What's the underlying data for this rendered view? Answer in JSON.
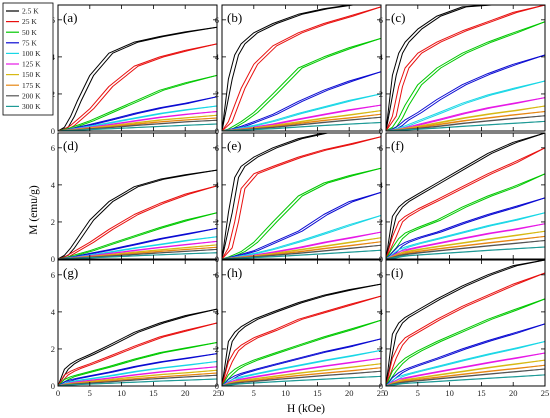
{
  "chart_data": {
    "type": "line",
    "xlabel": "H (kOe)",
    "ylabel": "M (emu/g)",
    "xlim": [
      0,
      25
    ],
    "ylim": [
      0,
      6.8
    ],
    "xticks": [
      0,
      5,
      10,
      15,
      20,
      25
    ],
    "yticks": [
      0,
      2,
      4,
      6
    ],
    "grid": false,
    "legend_placement": "top-left, outside panel (a)",
    "series_styles": [
      {
        "name": "2.5 K",
        "color": "#000000"
      },
      {
        "name": "25 K",
        "color": "#e8100f"
      },
      {
        "name": "50 K",
        "color": "#00c800"
      },
      {
        "name": "75 K",
        "color": "#0a0ad2"
      },
      {
        "name": "100 K",
        "color": "#19d7e6"
      },
      {
        "name": "125 K",
        "color": "#e619e6"
      },
      {
        "name": "150 K",
        "color": "#d7b914"
      },
      {
        "name": "175 K",
        "color": "#e68714"
      },
      {
        "name": "200 K",
        "color": "#555555"
      },
      {
        "name": "300 K",
        "color": "#1e9a96"
      }
    ],
    "x": [
      0,
      1,
      2,
      3,
      5,
      8,
      12,
      16,
      20,
      25
    ],
    "panels": [
      {
        "label": "(a)",
        "series": [
          [
            0,
            0.2,
            0.8,
            1.6,
            3.0,
            4.2,
            4.8,
            5.1,
            5.35,
            5.6
          ],
          [
            0,
            0.1,
            0.3,
            0.6,
            1.2,
            2.4,
            3.5,
            4.0,
            4.35,
            4.7
          ],
          [
            0,
            0.08,
            0.18,
            0.3,
            0.55,
            1.0,
            1.6,
            2.2,
            2.6,
            3.0
          ],
          [
            0,
            0.05,
            0.12,
            0.2,
            0.35,
            0.6,
            0.95,
            1.25,
            1.5,
            1.85
          ],
          [
            0,
            0.04,
            0.1,
            0.15,
            0.27,
            0.45,
            0.7,
            0.95,
            1.15,
            1.35
          ],
          [
            0,
            0.04,
            0.08,
            0.12,
            0.21,
            0.35,
            0.55,
            0.75,
            0.9,
            1.05
          ],
          [
            0,
            0.03,
            0.07,
            0.1,
            0.17,
            0.28,
            0.45,
            0.6,
            0.72,
            0.85
          ],
          [
            0,
            0.03,
            0.06,
            0.09,
            0.14,
            0.23,
            0.37,
            0.5,
            0.6,
            0.7
          ],
          [
            0,
            0.02,
            0.05,
            0.07,
            0.12,
            0.19,
            0.3,
            0.4,
            0.5,
            0.58
          ],
          [
            0,
            0.02,
            0.03,
            0.05,
            0.08,
            0.12,
            0.19,
            0.25,
            0.31,
            0.38
          ]
        ]
      },
      {
        "label": "(b)",
        "series": [
          [
            0,
            2.8,
            4.1,
            4.7,
            5.3,
            5.8,
            6.3,
            6.6,
            6.8,
            6.8
          ],
          [
            0,
            0.5,
            1.4,
            2.3,
            3.6,
            4.6,
            5.3,
            5.8,
            6.2,
            6.7
          ],
          [
            0,
            0.1,
            0.3,
            0.5,
            1.0,
            2.0,
            3.4,
            4.0,
            4.5,
            5.0
          ],
          [
            0,
            0.07,
            0.15,
            0.25,
            0.5,
            0.9,
            1.6,
            2.2,
            2.7,
            3.2
          ],
          [
            0,
            0.05,
            0.11,
            0.17,
            0.3,
            0.55,
            0.95,
            1.3,
            1.65,
            2.0
          ],
          [
            0,
            0.04,
            0.08,
            0.12,
            0.21,
            0.38,
            0.65,
            0.9,
            1.15,
            1.4
          ],
          [
            0,
            0.03,
            0.07,
            0.1,
            0.17,
            0.3,
            0.5,
            0.7,
            0.88,
            1.1
          ],
          [
            0,
            0.03,
            0.06,
            0.09,
            0.14,
            0.25,
            0.42,
            0.58,
            0.72,
            0.9
          ],
          [
            0,
            0.02,
            0.05,
            0.07,
            0.12,
            0.2,
            0.34,
            0.47,
            0.6,
            0.74
          ],
          [
            0,
            0.02,
            0.03,
            0.05,
            0.08,
            0.13,
            0.22,
            0.3,
            0.38,
            0.46
          ]
        ]
      },
      {
        "label": "(c)",
        "series": [
          [
            0,
            3.0,
            4.2,
            4.8,
            5.5,
            6.2,
            6.7,
            6.8,
            6.8,
            6.8
          ],
          [
            0,
            0.8,
            2.4,
            3.4,
            4.2,
            4.8,
            5.4,
            5.9,
            6.4,
            6.8
          ],
          [
            0,
            0.2,
            0.7,
            1.4,
            2.5,
            3.4,
            4.2,
            4.8,
            5.3,
            5.9
          ],
          [
            0,
            0.1,
            0.3,
            0.6,
            1.0,
            1.7,
            2.5,
            3.1,
            3.6,
            4.1
          ],
          [
            0,
            0.07,
            0.16,
            0.28,
            0.55,
            0.95,
            1.5,
            1.95,
            2.3,
            2.7
          ],
          [
            0,
            0.05,
            0.11,
            0.18,
            0.35,
            0.6,
            0.95,
            1.25,
            1.5,
            1.8
          ],
          [
            0,
            0.04,
            0.09,
            0.14,
            0.26,
            0.45,
            0.7,
            0.92,
            1.1,
            1.35
          ],
          [
            0,
            0.03,
            0.07,
            0.11,
            0.2,
            0.35,
            0.55,
            0.72,
            0.88,
            1.05
          ],
          [
            0,
            0.03,
            0.06,
            0.09,
            0.15,
            0.26,
            0.42,
            0.55,
            0.68,
            0.82
          ],
          [
            0,
            0.02,
            0.04,
            0.06,
            0.1,
            0.16,
            0.26,
            0.34,
            0.42,
            0.52
          ]
        ]
      },
      {
        "label": "(d)",
        "series": [
          [
            0,
            0.2,
            0.6,
            1.1,
            2.1,
            3.1,
            3.9,
            4.3,
            4.55,
            4.8
          ],
          [
            0,
            0.1,
            0.3,
            0.5,
            0.9,
            1.6,
            2.4,
            3.0,
            3.5,
            3.95
          ],
          [
            0,
            0.06,
            0.15,
            0.26,
            0.45,
            0.8,
            1.25,
            1.7,
            2.1,
            2.5
          ],
          [
            0,
            0.04,
            0.1,
            0.16,
            0.3,
            0.5,
            0.8,
            1.1,
            1.35,
            1.65
          ],
          [
            0,
            0.03,
            0.08,
            0.12,
            0.22,
            0.38,
            0.6,
            0.8,
            1.0,
            1.2
          ],
          [
            0,
            0.03,
            0.06,
            0.1,
            0.17,
            0.3,
            0.47,
            0.63,
            0.78,
            0.95
          ],
          [
            0,
            0.02,
            0.05,
            0.08,
            0.14,
            0.24,
            0.38,
            0.5,
            0.62,
            0.76
          ],
          [
            0,
            0.02,
            0.04,
            0.07,
            0.12,
            0.2,
            0.31,
            0.42,
            0.52,
            0.63
          ],
          [
            0,
            0.02,
            0.04,
            0.06,
            0.1,
            0.16,
            0.25,
            0.34,
            0.42,
            0.52
          ],
          [
            0,
            0.01,
            0.03,
            0.04,
            0.07,
            0.11,
            0.17,
            0.23,
            0.28,
            0.34
          ]
        ]
      },
      {
        "label": "(e)",
        "series": [
          [
            0,
            2.5,
            4.4,
            5.0,
            5.5,
            6.0,
            6.5,
            6.8,
            6.8,
            6.8
          ],
          [
            0,
            0.6,
            2.0,
            3.8,
            4.6,
            5.0,
            5.5,
            5.9,
            6.2,
            6.6
          ],
          [
            0,
            0.1,
            0.25,
            0.4,
            0.9,
            2.0,
            3.4,
            4.1,
            4.5,
            4.9
          ],
          [
            0,
            0.07,
            0.16,
            0.25,
            0.45,
            0.9,
            1.5,
            2.4,
            3.1,
            3.6
          ],
          [
            0,
            0.05,
            0.11,
            0.17,
            0.3,
            0.55,
            0.95,
            1.4,
            1.85,
            2.35
          ],
          [
            0,
            0.04,
            0.08,
            0.12,
            0.21,
            0.38,
            0.62,
            0.9,
            1.15,
            1.45
          ],
          [
            0,
            0.03,
            0.07,
            0.1,
            0.17,
            0.3,
            0.5,
            0.7,
            0.9,
            1.15
          ],
          [
            0,
            0.03,
            0.06,
            0.09,
            0.14,
            0.25,
            0.4,
            0.57,
            0.73,
            0.93
          ],
          [
            0,
            0.02,
            0.05,
            0.07,
            0.12,
            0.2,
            0.32,
            0.45,
            0.58,
            0.74
          ],
          [
            0,
            0.02,
            0.03,
            0.05,
            0.08,
            0.13,
            0.21,
            0.29,
            0.37,
            0.47
          ]
        ]
      },
      {
        "label": "(f)",
        "series": [
          [
            0,
            2.3,
            2.8,
            3.1,
            3.5,
            4.1,
            4.9,
            5.7,
            6.3,
            6.8
          ],
          [
            0,
            1.2,
            2.0,
            2.3,
            2.7,
            3.2,
            3.9,
            4.6,
            5.2,
            6.0
          ],
          [
            0,
            0.6,
            1.1,
            1.4,
            1.7,
            2.1,
            2.8,
            3.4,
            3.9,
            4.6
          ],
          [
            0,
            0.35,
            0.7,
            0.9,
            1.15,
            1.45,
            1.95,
            2.4,
            2.8,
            3.3
          ],
          [
            0,
            0.25,
            0.5,
            0.65,
            0.85,
            1.1,
            1.45,
            1.8,
            2.1,
            2.5
          ],
          [
            0,
            0.18,
            0.38,
            0.5,
            0.65,
            0.85,
            1.12,
            1.38,
            1.6,
            1.9
          ],
          [
            0,
            0.14,
            0.3,
            0.4,
            0.52,
            0.68,
            0.88,
            1.08,
            1.27,
            1.5
          ],
          [
            0,
            0.11,
            0.24,
            0.32,
            0.42,
            0.55,
            0.72,
            0.88,
            1.03,
            1.22
          ],
          [
            0,
            0.09,
            0.19,
            0.26,
            0.34,
            0.45,
            0.58,
            0.72,
            0.84,
            1.0
          ],
          [
            0,
            0.06,
            0.13,
            0.17,
            0.22,
            0.29,
            0.38,
            0.47,
            0.55,
            0.65
          ]
        ]
      },
      {
        "label": "(g)",
        "series": [
          [
            0,
            0.9,
            1.2,
            1.4,
            1.7,
            2.2,
            2.9,
            3.4,
            3.8,
            4.15
          ],
          [
            0,
            0.6,
            0.8,
            0.95,
            1.2,
            1.6,
            2.15,
            2.65,
            3.0,
            3.4
          ],
          [
            0,
            0.35,
            0.5,
            0.6,
            0.78,
            1.05,
            1.45,
            1.8,
            2.05,
            2.35
          ],
          [
            0,
            0.22,
            0.34,
            0.42,
            0.55,
            0.75,
            1.05,
            1.3,
            1.5,
            1.75
          ],
          [
            0,
            0.15,
            0.24,
            0.3,
            0.4,
            0.55,
            0.78,
            0.97,
            1.13,
            1.32
          ],
          [
            0,
            0.11,
            0.18,
            0.23,
            0.31,
            0.43,
            0.61,
            0.76,
            0.89,
            1.04
          ],
          [
            0,
            0.09,
            0.14,
            0.18,
            0.25,
            0.35,
            0.49,
            0.62,
            0.72,
            0.85
          ],
          [
            0,
            0.07,
            0.11,
            0.15,
            0.2,
            0.28,
            0.4,
            0.5,
            0.59,
            0.7
          ],
          [
            0,
            0.06,
            0.09,
            0.12,
            0.16,
            0.23,
            0.33,
            0.41,
            0.49,
            0.58
          ],
          [
            0,
            0.04,
            0.06,
            0.08,
            0.11,
            0.15,
            0.21,
            0.27,
            0.32,
            0.38
          ]
        ]
      },
      {
        "label": "(h)",
        "series": [
          [
            0,
            2.4,
            2.9,
            3.2,
            3.6,
            4.0,
            4.5,
            4.9,
            5.2,
            5.5
          ],
          [
            0,
            1.3,
            1.9,
            2.2,
            2.6,
            3.0,
            3.6,
            4.0,
            4.4,
            4.85
          ],
          [
            0,
            0.6,
            0.9,
            1.1,
            1.4,
            1.75,
            2.2,
            2.65,
            3.05,
            3.55
          ],
          [
            0,
            0.35,
            0.55,
            0.68,
            0.88,
            1.15,
            1.5,
            1.85,
            2.15,
            2.55
          ],
          [
            0,
            0.25,
            0.4,
            0.5,
            0.65,
            0.86,
            1.12,
            1.38,
            1.62,
            1.92
          ],
          [
            0,
            0.19,
            0.3,
            0.38,
            0.5,
            0.67,
            0.88,
            1.08,
            1.27,
            1.5
          ],
          [
            0,
            0.15,
            0.24,
            0.3,
            0.4,
            0.53,
            0.7,
            0.86,
            1.01,
            1.2
          ],
          [
            0,
            0.12,
            0.19,
            0.24,
            0.32,
            0.43,
            0.57,
            0.7,
            0.82,
            0.98
          ],
          [
            0,
            0.1,
            0.16,
            0.2,
            0.26,
            0.35,
            0.46,
            0.57,
            0.67,
            0.8
          ],
          [
            0,
            0.06,
            0.1,
            0.13,
            0.17,
            0.23,
            0.3,
            0.37,
            0.44,
            0.52
          ]
        ]
      },
      {
        "label": "(i)",
        "series": [
          [
            0,
            2.8,
            3.4,
            3.7,
            4.1,
            4.7,
            5.4,
            6.0,
            6.5,
            6.8
          ],
          [
            0,
            1.5,
            2.2,
            2.6,
            3.0,
            3.6,
            4.3,
            4.9,
            5.5,
            6.1
          ],
          [
            0,
            0.8,
            1.2,
            1.5,
            1.9,
            2.4,
            3.0,
            3.6,
            4.1,
            4.7
          ],
          [
            0,
            0.45,
            0.72,
            0.9,
            1.15,
            1.5,
            2.0,
            2.45,
            2.85,
            3.35
          ],
          [
            0,
            0.3,
            0.5,
            0.62,
            0.8,
            1.05,
            1.4,
            1.72,
            2.02,
            2.4
          ],
          [
            0,
            0.22,
            0.36,
            0.45,
            0.58,
            0.77,
            1.02,
            1.27,
            1.5,
            1.78
          ],
          [
            0,
            0.17,
            0.28,
            0.35,
            0.45,
            0.6,
            0.8,
            1.0,
            1.18,
            1.4
          ],
          [
            0,
            0.13,
            0.22,
            0.28,
            0.36,
            0.48,
            0.64,
            0.8,
            0.94,
            1.12
          ],
          [
            0,
            0.11,
            0.18,
            0.23,
            0.29,
            0.39,
            0.52,
            0.65,
            0.77,
            0.92
          ],
          [
            0,
            0.07,
            0.12,
            0.15,
            0.19,
            0.25,
            0.34,
            0.42,
            0.5,
            0.6
          ]
        ]
      }
    ]
  }
}
